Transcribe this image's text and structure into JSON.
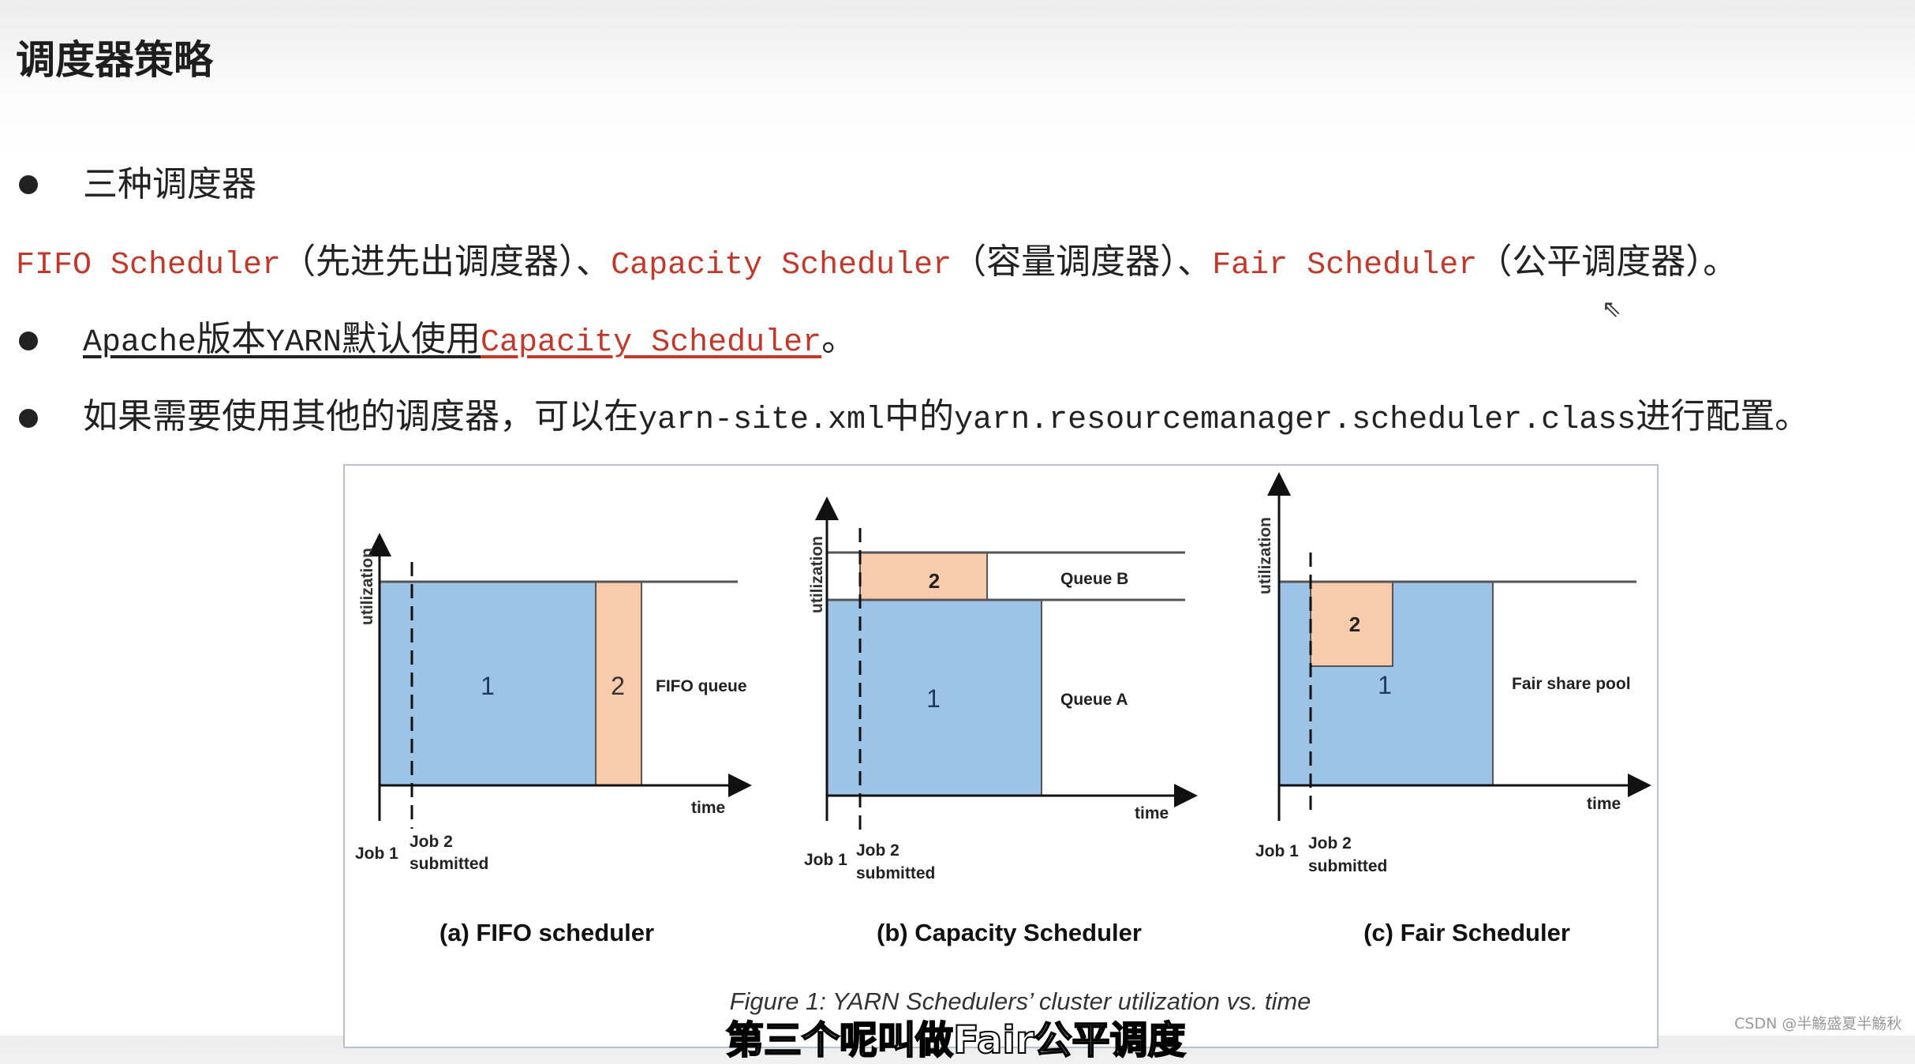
{
  "title": "调度器策略",
  "bullets": {
    "b1": "三种调度器",
    "line2": {
      "fifo": "FIFO Scheduler",
      "fifo_cn": "（先进先出调度器）、",
      "capacity": "Capacity Scheduler",
      "capacity_cn": "（容量调度器）、",
      "fair": "Fair Scheduler",
      "fair_cn": "（公平调度器）。"
    },
    "b3": {
      "apache": "Apache",
      "ver": "版本",
      "yarn": "YARN",
      "default": "默认使用",
      "capacity": "Capacity Scheduler",
      "end": "。"
    },
    "b4": {
      "p1": "如果需要使用其他的调度器，可以在",
      "file": "yarn-site.xml",
      "p2": "中的",
      "prop": "yarn.resourcemanager.scheduler.class",
      "p3": "进行配置。"
    }
  },
  "colors": {
    "accent_red": "#c0392b",
    "job1_blue": "#9dc3e6",
    "job2_orange": "#f8cbad"
  },
  "figure": {
    "axis_y": "utilization",
    "axis_x": "time",
    "job1": "Job 1",
    "job2": "Job 2",
    "submitted": "submitted",
    "one": "1",
    "two": "2",
    "fifo": {
      "queue": "FIFO queue",
      "caption": "(a) FIFO scheduler"
    },
    "capacity": {
      "queue_b": "Queue B",
      "queue_a": "Queue A",
      "caption": "(b) Capacity Scheduler"
    },
    "fair": {
      "pool": "Fair share pool",
      "caption": "(c) Fair Scheduler"
    },
    "caption": "Figure 1: YARN Schedulers’ cluster utilization vs. time"
  },
  "subtitle": "第三个呢叫做Fair公平调度",
  "watermark": "CSDN @半觞盛夏半觞秋"
}
